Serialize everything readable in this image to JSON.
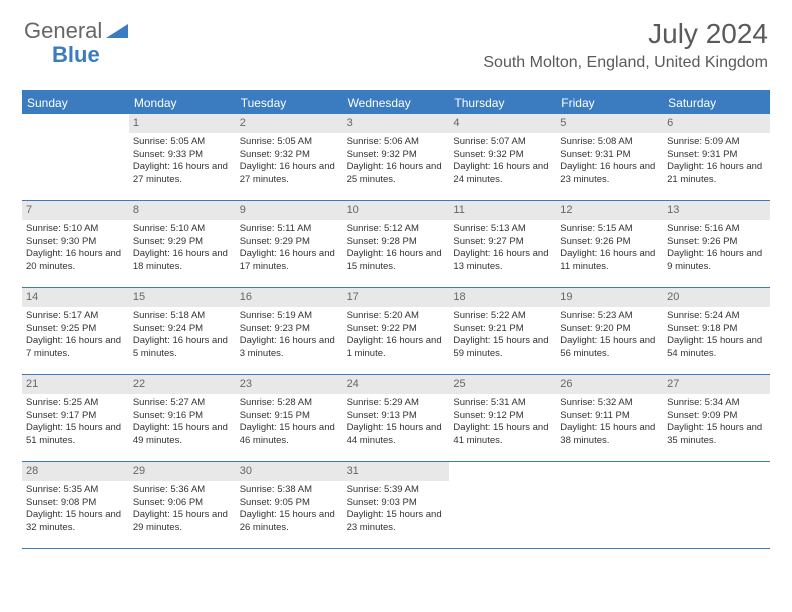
{
  "logo": {
    "text1": "General",
    "text2": "Blue"
  },
  "title": "July 2024",
  "location": "South Molton, England, United Kingdom",
  "colors": {
    "accent": "#3b7bbf",
    "dayNumBg": "#e8e8e8",
    "text": "#333333"
  },
  "weekdays": [
    "Sunday",
    "Monday",
    "Tuesday",
    "Wednesday",
    "Thursday",
    "Friday",
    "Saturday"
  ],
  "weeks": [
    [
      {
        "num": "",
        "sunrise": "",
        "sunset": "",
        "daylight": ""
      },
      {
        "num": "1",
        "sunrise": "Sunrise: 5:05 AM",
        "sunset": "Sunset: 9:33 PM",
        "daylight": "Daylight: 16 hours and 27 minutes."
      },
      {
        "num": "2",
        "sunrise": "Sunrise: 5:05 AM",
        "sunset": "Sunset: 9:32 PM",
        "daylight": "Daylight: 16 hours and 27 minutes."
      },
      {
        "num": "3",
        "sunrise": "Sunrise: 5:06 AM",
        "sunset": "Sunset: 9:32 PM",
        "daylight": "Daylight: 16 hours and 25 minutes."
      },
      {
        "num": "4",
        "sunrise": "Sunrise: 5:07 AM",
        "sunset": "Sunset: 9:32 PM",
        "daylight": "Daylight: 16 hours and 24 minutes."
      },
      {
        "num": "5",
        "sunrise": "Sunrise: 5:08 AM",
        "sunset": "Sunset: 9:31 PM",
        "daylight": "Daylight: 16 hours and 23 minutes."
      },
      {
        "num": "6",
        "sunrise": "Sunrise: 5:09 AM",
        "sunset": "Sunset: 9:31 PM",
        "daylight": "Daylight: 16 hours and 21 minutes."
      }
    ],
    [
      {
        "num": "7",
        "sunrise": "Sunrise: 5:10 AM",
        "sunset": "Sunset: 9:30 PM",
        "daylight": "Daylight: 16 hours and 20 minutes."
      },
      {
        "num": "8",
        "sunrise": "Sunrise: 5:10 AM",
        "sunset": "Sunset: 9:29 PM",
        "daylight": "Daylight: 16 hours and 18 minutes."
      },
      {
        "num": "9",
        "sunrise": "Sunrise: 5:11 AM",
        "sunset": "Sunset: 9:29 PM",
        "daylight": "Daylight: 16 hours and 17 minutes."
      },
      {
        "num": "10",
        "sunrise": "Sunrise: 5:12 AM",
        "sunset": "Sunset: 9:28 PM",
        "daylight": "Daylight: 16 hours and 15 minutes."
      },
      {
        "num": "11",
        "sunrise": "Sunrise: 5:13 AM",
        "sunset": "Sunset: 9:27 PM",
        "daylight": "Daylight: 16 hours and 13 minutes."
      },
      {
        "num": "12",
        "sunrise": "Sunrise: 5:15 AM",
        "sunset": "Sunset: 9:26 PM",
        "daylight": "Daylight: 16 hours and 11 minutes."
      },
      {
        "num": "13",
        "sunrise": "Sunrise: 5:16 AM",
        "sunset": "Sunset: 9:26 PM",
        "daylight": "Daylight: 16 hours and 9 minutes."
      }
    ],
    [
      {
        "num": "14",
        "sunrise": "Sunrise: 5:17 AM",
        "sunset": "Sunset: 9:25 PM",
        "daylight": "Daylight: 16 hours and 7 minutes."
      },
      {
        "num": "15",
        "sunrise": "Sunrise: 5:18 AM",
        "sunset": "Sunset: 9:24 PM",
        "daylight": "Daylight: 16 hours and 5 minutes."
      },
      {
        "num": "16",
        "sunrise": "Sunrise: 5:19 AM",
        "sunset": "Sunset: 9:23 PM",
        "daylight": "Daylight: 16 hours and 3 minutes."
      },
      {
        "num": "17",
        "sunrise": "Sunrise: 5:20 AM",
        "sunset": "Sunset: 9:22 PM",
        "daylight": "Daylight: 16 hours and 1 minute."
      },
      {
        "num": "18",
        "sunrise": "Sunrise: 5:22 AM",
        "sunset": "Sunset: 9:21 PM",
        "daylight": "Daylight: 15 hours and 59 minutes."
      },
      {
        "num": "19",
        "sunrise": "Sunrise: 5:23 AM",
        "sunset": "Sunset: 9:20 PM",
        "daylight": "Daylight: 15 hours and 56 minutes."
      },
      {
        "num": "20",
        "sunrise": "Sunrise: 5:24 AM",
        "sunset": "Sunset: 9:18 PM",
        "daylight": "Daylight: 15 hours and 54 minutes."
      }
    ],
    [
      {
        "num": "21",
        "sunrise": "Sunrise: 5:25 AM",
        "sunset": "Sunset: 9:17 PM",
        "daylight": "Daylight: 15 hours and 51 minutes."
      },
      {
        "num": "22",
        "sunrise": "Sunrise: 5:27 AM",
        "sunset": "Sunset: 9:16 PM",
        "daylight": "Daylight: 15 hours and 49 minutes."
      },
      {
        "num": "23",
        "sunrise": "Sunrise: 5:28 AM",
        "sunset": "Sunset: 9:15 PM",
        "daylight": "Daylight: 15 hours and 46 minutes."
      },
      {
        "num": "24",
        "sunrise": "Sunrise: 5:29 AM",
        "sunset": "Sunset: 9:13 PM",
        "daylight": "Daylight: 15 hours and 44 minutes."
      },
      {
        "num": "25",
        "sunrise": "Sunrise: 5:31 AM",
        "sunset": "Sunset: 9:12 PM",
        "daylight": "Daylight: 15 hours and 41 minutes."
      },
      {
        "num": "26",
        "sunrise": "Sunrise: 5:32 AM",
        "sunset": "Sunset: 9:11 PM",
        "daylight": "Daylight: 15 hours and 38 minutes."
      },
      {
        "num": "27",
        "sunrise": "Sunrise: 5:34 AM",
        "sunset": "Sunset: 9:09 PM",
        "daylight": "Daylight: 15 hours and 35 minutes."
      }
    ],
    [
      {
        "num": "28",
        "sunrise": "Sunrise: 5:35 AM",
        "sunset": "Sunset: 9:08 PM",
        "daylight": "Daylight: 15 hours and 32 minutes."
      },
      {
        "num": "29",
        "sunrise": "Sunrise: 5:36 AM",
        "sunset": "Sunset: 9:06 PM",
        "daylight": "Daylight: 15 hours and 29 minutes."
      },
      {
        "num": "30",
        "sunrise": "Sunrise: 5:38 AM",
        "sunset": "Sunset: 9:05 PM",
        "daylight": "Daylight: 15 hours and 26 minutes."
      },
      {
        "num": "31",
        "sunrise": "Sunrise: 5:39 AM",
        "sunset": "Sunset: 9:03 PM",
        "daylight": "Daylight: 15 hours and 23 minutes."
      },
      {
        "num": "",
        "sunrise": "",
        "sunset": "",
        "daylight": ""
      },
      {
        "num": "",
        "sunrise": "",
        "sunset": "",
        "daylight": ""
      },
      {
        "num": "",
        "sunrise": "",
        "sunset": "",
        "daylight": ""
      }
    ]
  ]
}
